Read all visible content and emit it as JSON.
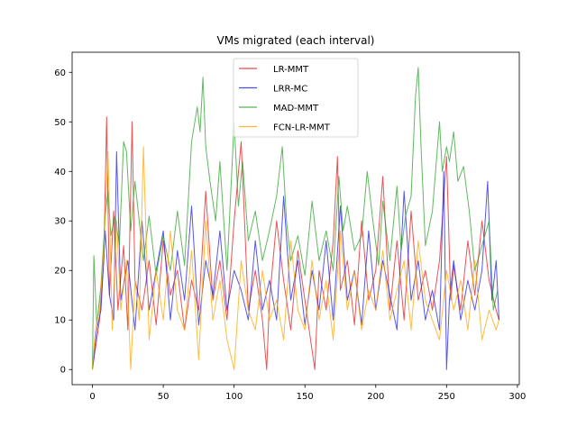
{
  "chart_data": {
    "type": "line",
    "title": "VMs migrated (each interval)",
    "xlabel": "",
    "ylabel": "",
    "xlim": [
      -14.35,
      301.35
    ],
    "ylim": [
      -3.05,
      64.05
    ],
    "xticks": [
      0,
      50,
      100,
      150,
      200,
      250,
      300
    ],
    "yticks": [
      0,
      10,
      20,
      30,
      40,
      50,
      60
    ],
    "grid": false,
    "legend_position": "top-center",
    "series": [
      {
        "name": "LR-MMT",
        "color": "#e31a1c",
        "x": [
          0,
          5,
          8,
          10,
          12,
          15,
          18,
          22,
          25,
          28,
          30,
          35,
          40,
          45,
          50,
          55,
          60,
          65,
          70,
          75,
          80,
          85,
          90,
          95,
          100,
          105,
          110,
          115,
          120,
          123,
          125,
          130,
          135,
          140,
          145,
          150,
          157,
          160,
          165,
          170,
          173,
          175,
          180,
          185,
          190,
          195,
          200,
          205,
          210,
          215,
          220,
          225,
          230,
          235,
          240,
          245,
          250,
          253,
          255,
          260,
          265,
          270,
          275,
          280,
          285,
          287
        ],
        "y": [
          0,
          10,
          22,
          51,
          15,
          32,
          12,
          25,
          8,
          50,
          18,
          12,
          22,
          9,
          26,
          15,
          20,
          8,
          18,
          12,
          36,
          14,
          22,
          10,
          30,
          46,
          12,
          20,
          10,
          0,
          14,
          30,
          18,
          8,
          24,
          14,
          0,
          20,
          12,
          26,
          43,
          16,
          22,
          9,
          30,
          14,
          20,
          39,
          12,
          26,
          10,
          32,
          14,
          20,
          12,
          22,
          43,
          14,
          21,
          12,
          26,
          15,
          30,
          18,
          12,
          10
        ]
      },
      {
        "name": "LRR-MC",
        "color": "#1f1fe0",
        "x": [
          0,
          3,
          6,
          9,
          12,
          15,
          17,
          20,
          25,
          30,
          35,
          40,
          45,
          50,
          55,
          60,
          65,
          70,
          75,
          80,
          85,
          90,
          95,
          100,
          105,
          110,
          115,
          120,
          125,
          130,
          135,
          140,
          145,
          150,
          155,
          160,
          165,
          170,
          175,
          180,
          185,
          190,
          195,
          200,
          205,
          210,
          215,
          220,
          225,
          230,
          235,
          240,
          245,
          248,
          250,
          252,
          255,
          260,
          265,
          270,
          275,
          279,
          282,
          285,
          287
        ],
        "y": [
          0,
          8,
          12,
          28,
          15,
          10,
          44,
          14,
          22,
          8,
          30,
          12,
          20,
          28,
          10,
          24,
          14,
          33,
          9,
          22,
          15,
          28,
          12,
          20,
          16,
          10,
          26,
          12,
          18,
          10,
          35,
          14,
          22,
          9,
          20,
          12,
          26,
          10,
          33,
          14,
          20,
          9,
          28,
          12,
          22,
          15,
          8,
          36,
          14,
          22,
          10,
          16,
          8,
          40,
          0,
          14,
          22,
          10,
          18,
          12,
          20,
          38,
          14,
          22,
          10
        ]
      },
      {
        "name": "MAD-MMT",
        "color": "#2ca02c",
        "x": [
          0,
          1,
          3,
          6,
          9,
          11,
          13,
          16,
          19,
          22,
          24,
          27,
          30,
          33,
          36,
          40,
          45,
          50,
          55,
          60,
          65,
          70,
          74,
          76,
          78,
          80,
          83,
          87,
          90,
          95,
          100,
          103,
          106,
          110,
          115,
          120,
          125,
          130,
          134,
          137,
          140,
          145,
          150,
          155,
          160,
          165,
          170,
          174,
          177,
          180,
          185,
          190,
          194,
          198,
          202,
          205,
          210,
          215,
          218,
          221,
          225,
          228,
          230,
          232,
          235,
          240,
          245,
          247,
          250,
          252,
          255,
          258,
          262,
          266,
          270,
          275,
          280,
          283,
          286
        ],
        "y": [
          0,
          23,
          9,
          17,
          31,
          36,
          27,
          31,
          25,
          46,
          44,
          28,
          38,
          30,
          22,
          31,
          19,
          27,
          20,
          32,
          21,
          46,
          53,
          48,
          59,
          45,
          38,
          30,
          42,
          20,
          50,
          33,
          42,
          26,
          32,
          22,
          28,
          35,
          45,
          30,
          22,
          27,
          19,
          34,
          22,
          28,
          20,
          39,
          28,
          33,
          24,
          27,
          40,
          30,
          21,
          34,
          22,
          37,
          24,
          31,
          35,
          55,
          61,
          45,
          25,
          32,
          50,
          40,
          45,
          42,
          48,
          38,
          41,
          32,
          20,
          25,
          30,
          12,
          16
        ]
      },
      {
        "name": "FCN-LR-MMT",
        "color": "#ffa500",
        "x": [
          0,
          2,
          5,
          8,
          11,
          14,
          17,
          20,
          24,
          27,
          30,
          33,
          36,
          40,
          45,
          50,
          55,
          60,
          65,
          70,
          75,
          80,
          85,
          90,
          95,
          100,
          105,
          110,
          115,
          120,
          125,
          130,
          135,
          140,
          145,
          150,
          155,
          160,
          165,
          170,
          175,
          180,
          185,
          190,
          195,
          200,
          205,
          210,
          215,
          220,
          225,
          230,
          235,
          240,
          245,
          250,
          255,
          260,
          265,
          270,
          275,
          280,
          285,
          287
        ],
        "y": [
          0,
          8,
          12,
          24,
          44,
          8,
          30,
          12,
          22,
          0,
          18,
          10,
          45,
          6,
          20,
          10,
          28,
          12,
          8,
          24,
          2,
          30,
          10,
          18,
          6,
          0,
          22,
          12,
          8,
          20,
          10,
          14,
          6,
          26,
          12,
          8,
          22,
          10,
          18,
          6,
          28,
          12,
          20,
          8,
          16,
          12,
          24,
          10,
          16,
          22,
          8,
          26,
          14,
          10,
          6,
          20,
          12,
          18,
          8,
          22,
          6,
          12,
          8,
          10
        ]
      }
    ]
  }
}
